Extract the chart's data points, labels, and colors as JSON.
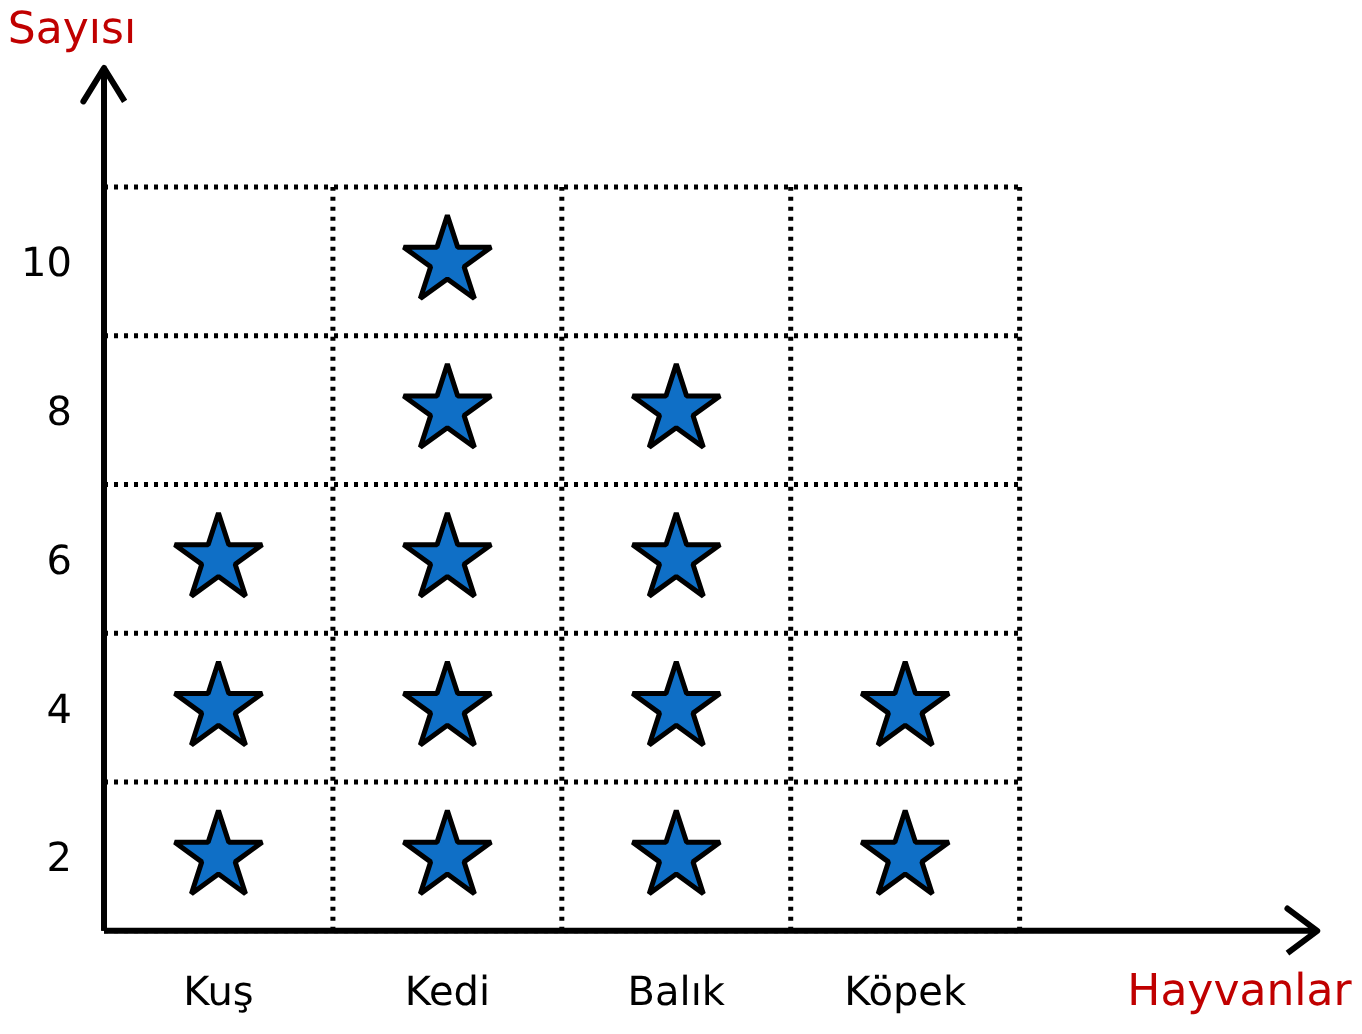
{
  "chart_data": {
    "type": "scatter",
    "xlabel": "Hayvanlar",
    "ylabel": "Sayısı",
    "categories": [
      "Kuş",
      "Kedi",
      "Balık",
      "Köpek"
    ],
    "series": [
      {
        "color": "#0f6fc6",
        "x": [
          "Kuş",
          "Kuş",
          "Kuş",
          "Kedi",
          "Kedi",
          "Kedi",
          "Kedi",
          "Kedi",
          "Balık",
          "Balık",
          "Balık",
          "Balık",
          "Köpek",
          "Köpek"
        ],
        "values": [
          2,
          4,
          6,
          2,
          4,
          6,
          8,
          10,
          2,
          4,
          6,
          8,
          2,
          4
        ]
      }
    ],
    "marker": "star",
    "ylim": [
      1,
      12.6
    ],
    "yticks": [
      2,
      4,
      6,
      8,
      10
    ],
    "grid": true
  }
}
